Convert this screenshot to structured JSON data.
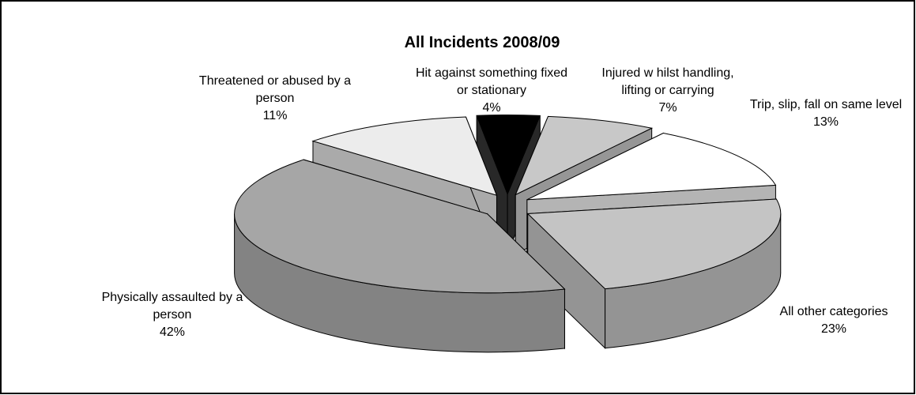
{
  "chart_data": {
    "type": "pie3d",
    "title": "All Incidents 2008/09",
    "categories": [
      "Hit against something fixed or stationary",
      "Injured w hilst handling, lifting or carrying",
      "Trip, slip, fall on same level",
      "All other categories",
      "Physically assaulted by a person",
      "Threatened or abused by a person"
    ],
    "values": [
      4,
      7,
      13,
      23,
      42,
      11
    ],
    "value_labels": [
      "4%",
      "7%",
      "13%",
      "23%",
      "42%",
      "11%"
    ],
    "colors": [
      "#000000",
      "#c8c8c8",
      "#ffffff",
      "#c4c4c4",
      "#a6a6a6",
      "#ececec"
    ]
  }
}
